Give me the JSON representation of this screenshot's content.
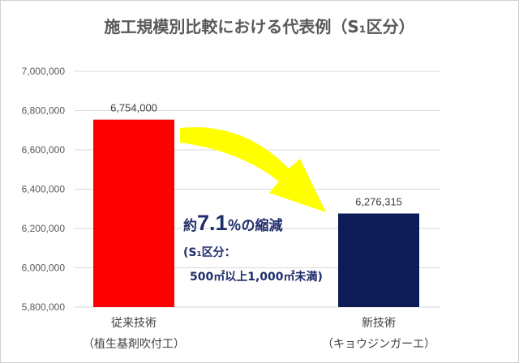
{
  "chart_data": {
    "type": "bar",
    "title": "施工規模別比較における代表例（S₁区分）",
    "categories": [
      {
        "line1": "従来技術",
        "line2": "（植生基剤吹付工）"
      },
      {
        "line1": "新技術",
        "line2": "（キョウジンガーエ）"
      }
    ],
    "values": [
      6754000,
      6276315
    ],
    "value_labels": [
      "6,754,000",
      "6,276,315"
    ],
    "bar_colors": [
      "#ff0000",
      "#0d1b57"
    ],
    "ylim": [
      5800000,
      7000000
    ],
    "ytick_step": 200000,
    "grid": true,
    "arrow_color": "#ffff00",
    "annotation": {
      "prefix": "約",
      "number": "7.1",
      "suffix": "％の縮減",
      "line2": "(S₁区分：",
      "line3": "500㎡以上1,000㎡未満)"
    }
  }
}
